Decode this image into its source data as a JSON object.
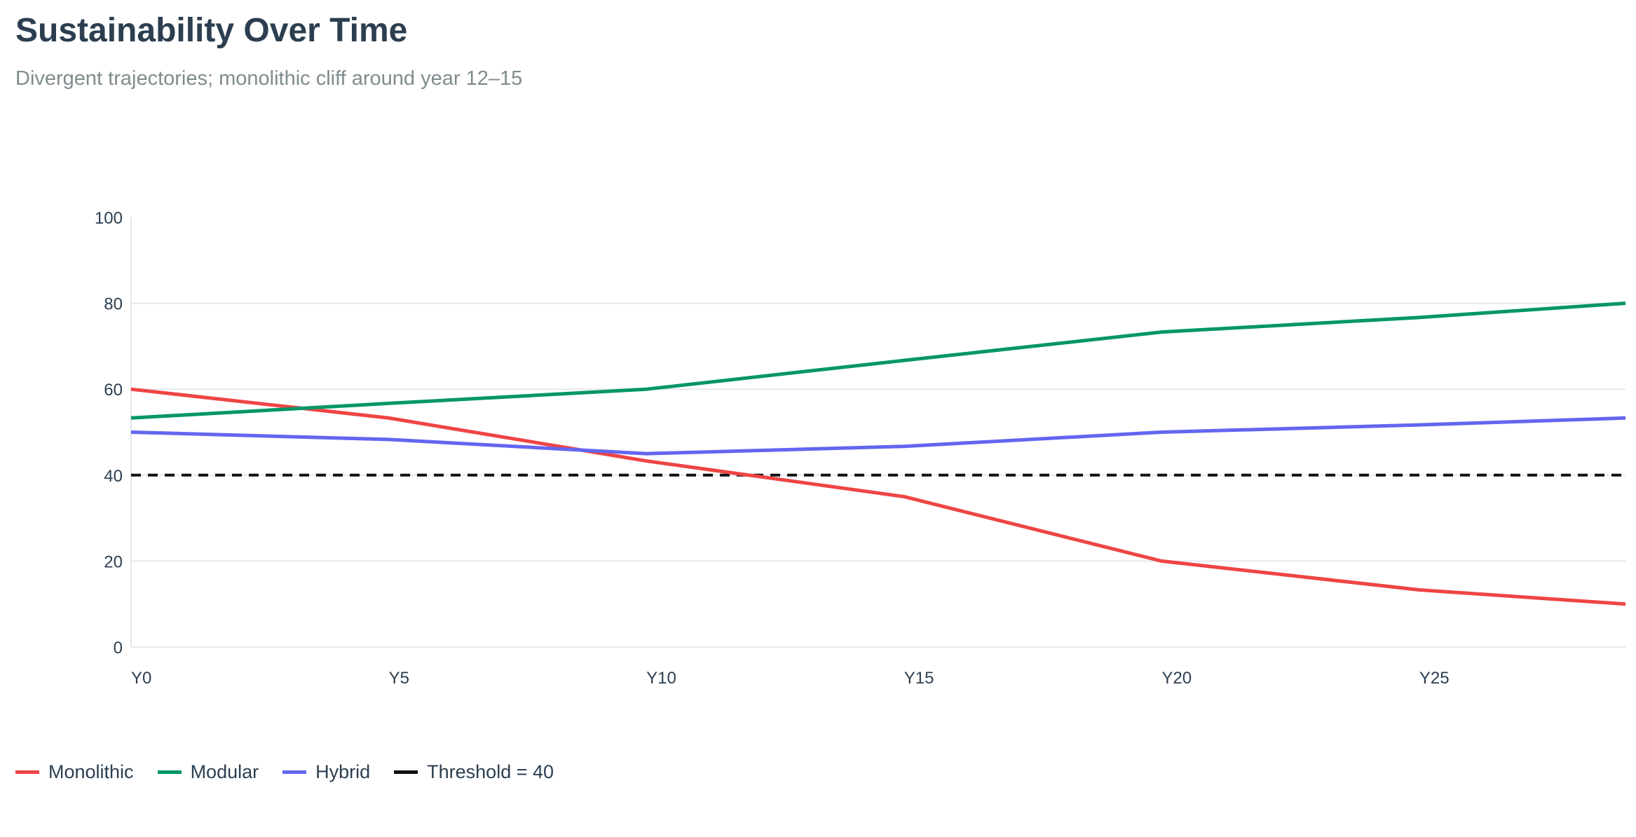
{
  "chart_data": {
    "type": "line",
    "title": "Sustainability Over Time",
    "subtitle": "Divergent trajectories; monolithic cliff around year 12–15",
    "xlabel": "",
    "ylabel": "",
    "x": [
      0,
      5,
      10,
      15,
      20,
      25,
      29
    ],
    "x_ticks": [
      0,
      5,
      10,
      15,
      20,
      25
    ],
    "x_tick_labels": [
      "Y0",
      "Y5",
      "Y10",
      "Y15",
      "Y20",
      "Y25"
    ],
    "xlim": [
      0,
      29
    ],
    "ylim": [
      0,
      100
    ],
    "y_ticks": [
      0,
      20,
      40,
      60,
      80,
      100
    ],
    "y_tick_labels": [
      "0",
      "20",
      "40",
      "60",
      "80",
      "100"
    ],
    "grid": true,
    "legend_position": "bottom-left",
    "series": [
      {
        "name": "Monolithic",
        "color": "#ef4444",
        "values": [
          60,
          53.3,
          43.3,
          35,
          20,
          13.3,
          10
        ]
      },
      {
        "name": "Modular",
        "color": "#059669",
        "values": [
          53.3,
          56.7,
          60,
          66.7,
          73.3,
          76.7,
          80
        ]
      },
      {
        "name": "Hybrid",
        "color": "#6366f1",
        "values": [
          50,
          48.3,
          45,
          46.7,
          50,
          51.7,
          53.3
        ]
      }
    ],
    "reference_lines": [
      {
        "name": "Threshold = 40",
        "value": 40,
        "color": "#111111",
        "style": "dashed"
      }
    ]
  }
}
